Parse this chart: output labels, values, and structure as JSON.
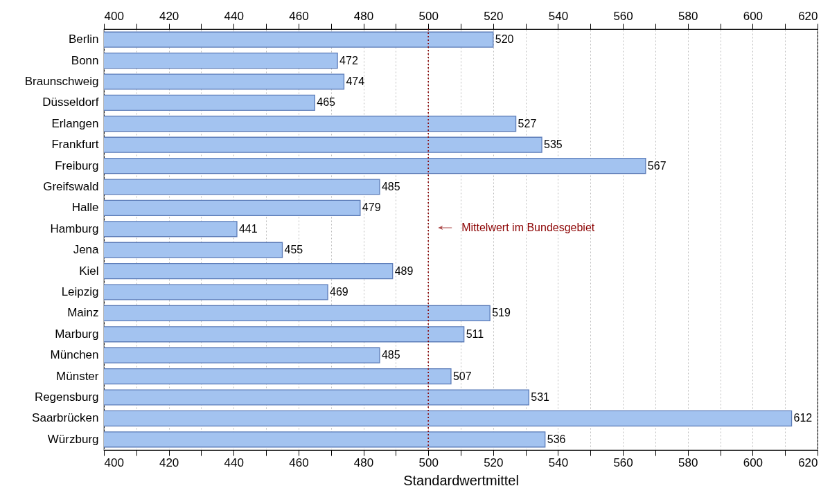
{
  "chart_data": {
    "type": "bar",
    "orientation": "horizontal",
    "xlabel": "Standardwertmittel",
    "categories": [
      "Berlin",
      "Bonn",
      "Braunschweig",
      "Düsseldorf",
      "Erlangen",
      "Frankfurt",
      "Freiburg",
      "Greifswald",
      "Halle",
      "Hamburg",
      "Jena",
      "Kiel",
      "Leipzig",
      "Mainz",
      "Marburg",
      "München",
      "Münster",
      "Regensburg",
      "Saarbrücken",
      "Würzburg"
    ],
    "values": [
      520,
      472,
      474,
      465,
      527,
      535,
      567,
      485,
      479,
      441,
      455,
      489,
      469,
      519,
      511,
      485,
      507,
      531,
      612,
      536
    ],
    "color": "#a3c3f0",
    "data_labels": true,
    "grid": "x",
    "xlim": [
      400,
      620
    ],
    "xticks": [
      400,
      {
        "value": 410,
        "label": null
      },
      420,
      {
        "value": 430,
        "label": null
      },
      440,
      {
        "value": 450,
        "label": null
      },
      460,
      {
        "value": 470,
        "label": null
      },
      480,
      {
        "value": 490,
        "label": null
      },
      500,
      {
        "value": 510,
        "label": null
      },
      520,
      {
        "value": 530,
        "label": null
      },
      540,
      {
        "value": 550,
        "label": null
      },
      560,
      {
        "value": 570,
        "label": null
      },
      580,
      {
        "value": 590,
        "label": null
      },
      600,
      {
        "value": 610,
        "label": null
      },
      620
    ],
    "x2lim": [
      400,
      620
    ],
    "x2ticks": [
      400,
      {
        "value": 410,
        "label": null
      },
      420,
      {
        "value": 430,
        "label": null
      },
      440,
      {
        "value": 450,
        "label": null
      },
      460,
      {
        "value": 470,
        "label": null
      },
      480,
      {
        "value": 490,
        "label": null
      },
      500,
      {
        "value": 510,
        "label": null
      },
      520,
      {
        "value": 530,
        "label": null
      },
      540,
      {
        "value": 550,
        "label": null
      },
      560,
      {
        "value": 570,
        "label": null
      },
      580,
      {
        "value": 590,
        "label": null
      },
      600,
      {
        "value": 610,
        "label": null
      },
      620
    ],
    "ref_lines": [
      {
        "axis": "x",
        "value": 500,
        "label": "Mittelwert im Bundesgebiet",
        "color": "#8b0000",
        "line_style": "dotted"
      }
    ]
  }
}
